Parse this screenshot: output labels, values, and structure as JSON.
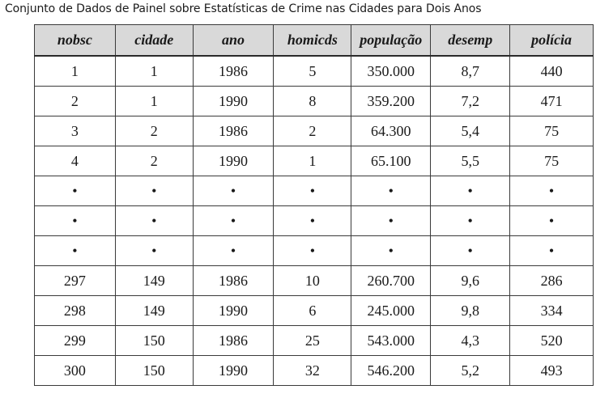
{
  "caption": "Conjunto de Dados de Painel sobre Estatísticas de Crime nas Cidades para Dois Anos",
  "table": {
    "headers": [
      "nobsc",
      "cidade",
      "ano",
      "homicds",
      "população",
      "desemp",
      "polícia"
    ],
    "rows": [
      [
        "1",
        "1",
        "1986",
        "5",
        "350.000",
        "8,7",
        "440"
      ],
      [
        "2",
        "1",
        "1990",
        "8",
        "359.200",
        "7,2",
        "471"
      ],
      [
        "3",
        "2",
        "1986",
        "2",
        "64.300",
        "5,4",
        "75"
      ],
      [
        "4",
        "2",
        "1990",
        "1",
        "65.100",
        "5,5",
        "75"
      ],
      [
        "•",
        "•",
        "•",
        "•",
        "•",
        "•",
        "•"
      ],
      [
        "•",
        "•",
        "•",
        "•",
        "•",
        "•",
        "•"
      ],
      [
        "•",
        "•",
        "•",
        "•",
        "•",
        "•",
        "•"
      ],
      [
        "297",
        "149",
        "1986",
        "10",
        "260.700",
        "9,6",
        "286"
      ],
      [
        "298",
        "149",
        "1990",
        "6",
        "245.000",
        "9,8",
        "334"
      ],
      [
        "299",
        "150",
        "1986",
        "25",
        "543.000",
        "4,3",
        "520"
      ],
      [
        "300",
        "150",
        "1990",
        "32",
        "546.200",
        "5,2",
        "493"
      ]
    ]
  }
}
